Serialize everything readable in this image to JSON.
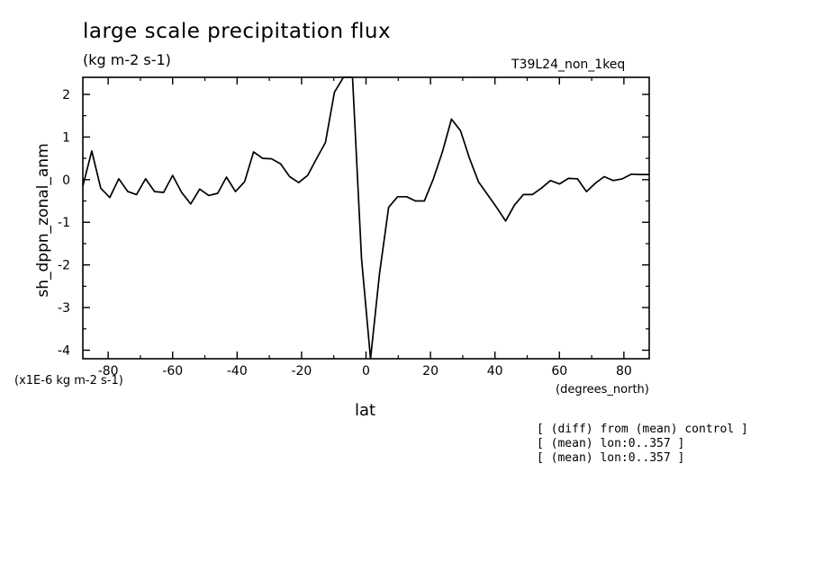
{
  "chart_data": {
    "type": "line",
    "title": "large scale precipitation flux",
    "subtitle": "(kg m-2 s-1)",
    "run_label": "T39L24_non_1keq",
    "xlabel": "lat",
    "x_units": "(degrees_north)",
    "ylabel": "sh_dppn_zonal_anm",
    "y_multiplier": "(x1E-6 kg m-2 s-1)",
    "xlim": [
      -87.86,
      87.86
    ],
    "ylim": [
      -4.2,
      2.4
    ],
    "x_ticks": [
      -80,
      -60,
      -40,
      -20,
      0,
      20,
      40,
      60,
      80
    ],
    "x_tick_labels": [
      "-80",
      "-60",
      "-40",
      "-20",
      "0",
      "20",
      "40",
      "60",
      "80"
    ],
    "y_ticks": [
      2,
      1,
      0,
      -1,
      -2,
      -3,
      -4
    ],
    "y_tick_labels": [
      "2",
      "1",
      "0",
      "-1",
      "-2",
      "-3",
      "-4"
    ],
    "grid": false,
    "series": [
      {
        "x": [
          -87.86,
          -85.1,
          -82.3,
          -79.5,
          -76.7,
          -73.9,
          -71.2,
          -68.4,
          -65.6,
          -62.8,
          -60.0,
          -57.2,
          -54.4,
          -51.6,
          -48.8,
          -46.0,
          -43.3,
          -40.5,
          -37.7,
          -34.9,
          -32.1,
          -29.3,
          -26.5,
          -23.7,
          -20.9,
          -18.1,
          -15.3,
          -12.6,
          -9.8,
          -7.0,
          -4.2,
          -1.4,
          1.4,
          4.2,
          7.0,
          9.8,
          12.6,
          15.3,
          18.1,
          20.9,
          23.7,
          26.5,
          29.3,
          32.1,
          34.9,
          37.7,
          40.5,
          43.3,
          46.0,
          48.8,
          51.6,
          54.4,
          57.2,
          60.0,
          62.8,
          65.6,
          68.4,
          71.2,
          73.9,
          76.7,
          79.5,
          82.3,
          85.1,
          87.86
        ],
        "y": [
          -0.15,
          0.67,
          -0.2,
          -0.42,
          0.02,
          -0.28,
          -0.35,
          0.02,
          -0.28,
          -0.3,
          0.1,
          -0.3,
          -0.57,
          -0.22,
          -0.37,
          -0.32,
          0.06,
          -0.28,
          -0.05,
          0.65,
          0.5,
          0.49,
          0.37,
          0.07,
          -0.07,
          0.1,
          0.5,
          0.87,
          2.05,
          2.4,
          2.4,
          -1.85,
          -4.2,
          -2.2,
          -0.65,
          -0.4,
          -0.4,
          -0.5,
          -0.5,
          0.02,
          0.65,
          1.42,
          1.15,
          0.5,
          -0.05,
          -0.35,
          -0.65,
          -0.97,
          -0.6,
          -0.35,
          -0.35,
          -0.2,
          -0.02,
          -0.1,
          0.03,
          0.02,
          -0.28,
          -0.08,
          0.07,
          -0.02,
          0.02,
          0.13,
          0.12,
          0.12
        ]
      }
    ]
  },
  "notes": [
    "[ (diff) from (mean) control ]",
    "[ (mean) lon:0..357 ]",
    "[ (mean) lon:0..357 ]"
  ]
}
